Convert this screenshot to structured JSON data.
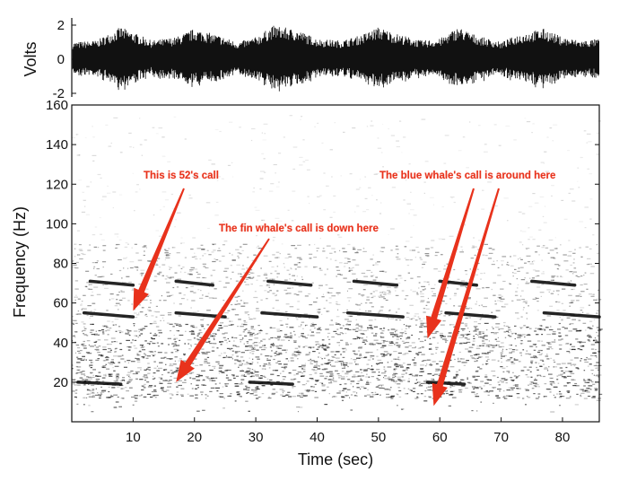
{
  "chart_data": [
    {
      "type": "line",
      "panel": "waveform",
      "ylabel": "Volts",
      "ylim": [
        -2,
        2
      ],
      "yticks": [
        "2",
        "0",
        "-2"
      ],
      "xlim": [
        0,
        86
      ],
      "amplitude_envelope": {
        "t": [
          0,
          4,
          8,
          13,
          17,
          20,
          24,
          27,
          30,
          33,
          37,
          40,
          44,
          47,
          50,
          53,
          57,
          60,
          63,
          66,
          70,
          73,
          77,
          80,
          83,
          86
        ],
        "volts": [
          1.0,
          1.1,
          1.9,
          1.1,
          1.3,
          1.8,
          1.4,
          1.0,
          1.3,
          2.0,
          1.7,
          1.2,
          1.1,
          1.4,
          1.9,
          1.5,
          1.1,
          1.2,
          1.9,
          1.4,
          1.0,
          1.5,
          1.8,
          1.3,
          1.1,
          1.2
        ]
      }
    },
    {
      "type": "heatmap",
      "panel": "spectrogram",
      "xlabel": "Time (sec)",
      "ylabel": "Frequency (Hz)",
      "xlim": [
        0,
        86
      ],
      "ylim": [
        0,
        160
      ],
      "xticks": [
        "10",
        "20",
        "30",
        "40",
        "50",
        "60",
        "70",
        "80"
      ],
      "yticks": [
        "20",
        "40",
        "60",
        "80",
        "100",
        "120",
        "140",
        "160"
      ],
      "call_segments": [
        {
          "f_start": 71,
          "f_end": 69,
          "t": [
            3,
            10
          ]
        },
        {
          "f_start": 71,
          "f_end": 69,
          "t": [
            17,
            23
          ]
        },
        {
          "f_start": 71,
          "f_end": 69,
          "t": [
            32,
            39
          ]
        },
        {
          "f_start": 71,
          "f_end": 69,
          "t": [
            46,
            53
          ]
        },
        {
          "f_start": 71,
          "f_end": 69,
          "t": [
            60,
            66
          ]
        },
        {
          "f_start": 71,
          "f_end": 69,
          "t": [
            75,
            82
          ]
        },
        {
          "f_start": 55,
          "f_end": 53,
          "t": [
            2,
            10
          ]
        },
        {
          "f_start": 55,
          "f_end": 53,
          "t": [
            17,
            25
          ]
        },
        {
          "f_start": 55,
          "f_end": 53,
          "t": [
            31,
            40
          ]
        },
        {
          "f_start": 55,
          "f_end": 53,
          "t": [
            45,
            54
          ]
        },
        {
          "f_start": 55,
          "f_end": 53,
          "t": [
            61,
            69
          ]
        },
        {
          "f_start": 55,
          "f_end": 53,
          "t": [
            77,
            86
          ]
        },
        {
          "f_start": 20,
          "f_end": 19,
          "t": [
            1,
            8
          ]
        },
        {
          "f_start": 20,
          "f_end": 19,
          "t": [
            29,
            36
          ]
        },
        {
          "f_start": 20,
          "f_end": 19,
          "t": [
            58,
            64
          ]
        }
      ],
      "annotations": [
        {
          "text": "This is 52's call",
          "targets": [
            [
              10,
              56
            ]
          ]
        },
        {
          "text": "The fin whale's call is down here",
          "targets": [
            [
              17,
              20
            ]
          ]
        },
        {
          "text": "The blue whale's call is around here",
          "targets": [
            [
              58,
              42
            ],
            [
              59,
              8
            ]
          ]
        }
      ],
      "annotation_color": "#e8321c"
    }
  ]
}
